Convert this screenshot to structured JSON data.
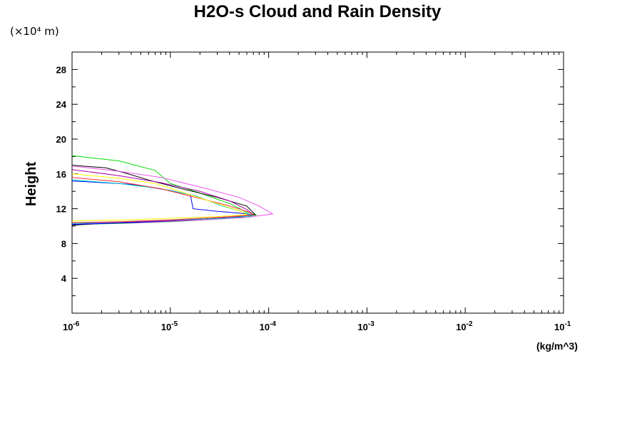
{
  "chart_data": {
    "type": "line",
    "title": "H2O-s Cloud and Rain Density",
    "ylabel": "Height",
    "y_scale_label": "(×10⁴ m)",
    "x_unit_label": "(kg/m^3)",
    "x_scale": "log",
    "xlim": [
      1e-06,
      0.1
    ],
    "ylim": [
      0,
      30
    ],
    "x_tick_labels": [
      {
        "value": 1e-06,
        "base": "10",
        "exp": "-6"
      },
      {
        "value": 1e-05,
        "base": "10",
        "exp": "-5"
      },
      {
        "value": 0.0001,
        "base": "10",
        "exp": "-4"
      },
      {
        "value": 0.001,
        "base": "10",
        "exp": "-3"
      },
      {
        "value": 0.01,
        "base": "10",
        "exp": "-2"
      },
      {
        "value": 0.1,
        "base": "10",
        "exp": "-1"
      }
    ],
    "y_ticks": [
      4,
      8,
      12,
      16,
      20,
      24,
      28
    ],
    "grid": false,
    "series": [
      {
        "color": "#00dd00",
        "x": [
          1e-06,
          3e-06,
          7e-06,
          1e-05,
          2e-05,
          4e-05,
          6e-05,
          7.5e-05,
          6e-05,
          3e-05,
          1e-05,
          3e-06,
          1e-06
        ],
        "y": [
          18.1,
          17.5,
          16.4,
          14.9,
          13.8,
          12.6,
          11.6,
          11.3,
          11.0,
          10.8,
          10.5,
          10.3,
          10.2
        ]
      },
      {
        "color": "#000000",
        "x": [
          1e-06,
          2.2e-06,
          3.5e-06,
          6e-06,
          1.2e-05,
          3e-05,
          6e-05,
          7.3e-05,
          5e-05,
          2e-05,
          6e-06,
          2e-06,
          1e-06
        ],
        "y": [
          17.0,
          16.7,
          16.1,
          15.3,
          14.4,
          13.3,
          12.3,
          11.3,
          11.0,
          10.8,
          10.5,
          10.3,
          10.1
        ]
      },
      {
        "color": "#ee55ee",
        "x": [
          1e-06,
          3e-06,
          8e-06,
          2e-05,
          5e-05,
          8e-05,
          0.00011,
          6e-05,
          2e-05,
          5e-06,
          1e-06
        ],
        "y": [
          16.9,
          16.3,
          15.6,
          14.5,
          13.3,
          12.3,
          11.4,
          11.0,
          10.7,
          10.4,
          10.3
        ]
      },
      {
        "color": "#0000ff",
        "x": [
          1e-06,
          4e-06,
          1e-05,
          1.6e-05,
          1.7e-05,
          3e-05,
          5e-05,
          7e-05,
          4e-05,
          1.5e-05,
          4e-06,
          1e-06
        ],
        "y": [
          15.2,
          14.8,
          14.1,
          13.6,
          12.0,
          11.7,
          11.5,
          11.3,
          11.0,
          10.7,
          10.4,
          10.2
        ]
      },
      {
        "color": "#aa00aa",
        "x": [
          1e-06,
          3e-06,
          8e-06,
          2e-05,
          4e-05,
          6e-05,
          7e-05,
          4e-05,
          1.5e-05,
          4e-06,
          1e-06
        ],
        "y": [
          16.5,
          15.8,
          15.0,
          14.0,
          12.9,
          11.9,
          11.3,
          11.0,
          10.7,
          10.5,
          10.3
        ]
      },
      {
        "color": "#00cccc",
        "x": [
          1e-06,
          3e-06,
          8e-06,
          1.8e-05,
          3.2e-05,
          5.5e-05,
          7e-05,
          3.5e-05,
          1e-05,
          3e-06,
          1e-06
        ],
        "y": [
          15.3,
          14.9,
          14.3,
          13.5,
          12.4,
          11.6,
          11.2,
          10.9,
          10.7,
          10.5,
          10.3
        ]
      },
      {
        "color": "#ff3333",
        "x": [
          1e-06,
          3e-06,
          8e-06,
          1.8e-05,
          3.5e-05,
          6e-05,
          7e-05,
          3e-05,
          9e-06,
          3e-06,
          1e-06
        ],
        "y": [
          15.6,
          15.1,
          14.3,
          13.3,
          12.5,
          11.7,
          11.3,
          11.0,
          10.7,
          10.5,
          10.4
        ]
      },
      {
        "color": "#ffff00",
        "x": [
          1e-06,
          3e-06,
          7e-06,
          1.5e-05,
          3e-05,
          5.5e-05,
          6e-05,
          3e-05,
          1e-05,
          3e-06,
          1e-06
        ],
        "y": [
          16.0,
          15.5,
          14.9,
          13.7,
          12.6,
          11.6,
          11.3,
          11.1,
          10.9,
          10.7,
          10.6
        ]
      }
    ]
  }
}
